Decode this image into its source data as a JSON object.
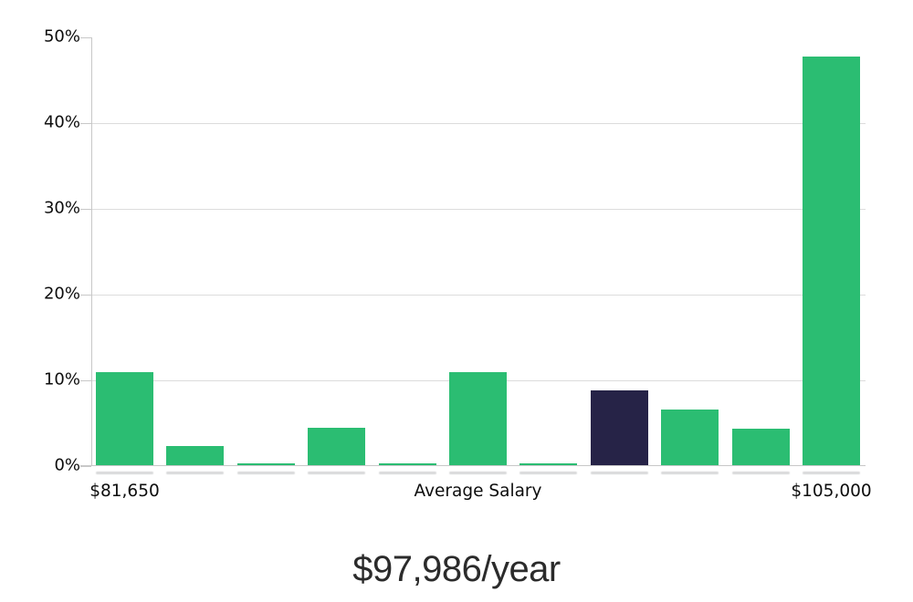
{
  "chart_data": {
    "type": "bar",
    "title": "$97,986/year",
    "values": [
      10.8,
      2.2,
      0.2,
      4.4,
      0.2,
      10.9,
      0.2,
      8.7,
      6.5,
      4.3,
      47.7
    ],
    "highlight_index": 7,
    "ylim": [
      0,
      50
    ],
    "y_ticks": [
      0,
      10,
      20,
      30,
      40,
      50
    ],
    "y_tick_labels": [
      "0%",
      "10%",
      "20%",
      "30%",
      "40%",
      "50%"
    ],
    "x_axis_labels": [
      {
        "text": "$81,650",
        "bar_index": 0
      },
      {
        "text": "Average Salary",
        "bar_index": 5
      },
      {
        "text": "$105,000",
        "bar_index": 10
      }
    ],
    "ylabel": "",
    "xlabel": "",
    "legend_position": "none",
    "grid": "horizontal",
    "colors": {
      "bar": "#2bbd72",
      "highlight_bar": "#262347",
      "gridline": "#dcdcdc",
      "axis": "#c8c8c8",
      "tick_label": "#0d0d0d",
      "title": "#2b2b2b",
      "background": "#ffffff"
    }
  }
}
